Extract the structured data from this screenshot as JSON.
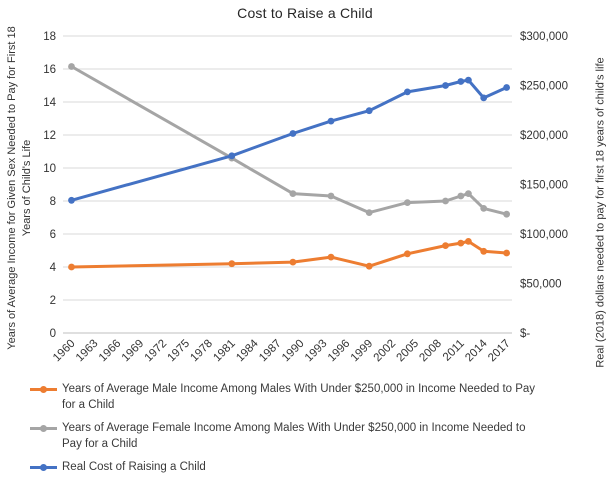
{
  "chart_data": {
    "type": "line",
    "title": "Cost to Raise a Child",
    "x": [
      1960,
      1981,
      1989,
      1994,
      1999,
      2004,
      2009,
      2011,
      2012,
      2014,
      2017
    ],
    "x_tick_labels": [
      "1960",
      "1963",
      "1966",
      "1969",
      "1972",
      "1975",
      "1978",
      "1981",
      "1984",
      "1987",
      "1990",
      "1993",
      "1996",
      "1999",
      "2002",
      "2005",
      "2008",
      "2011",
      "2014",
      "2017"
    ],
    "left_axis": {
      "label_line1": "Years of Average Income for Given Sex Needed to Pay for First 18",
      "label_line2": "Years of Child's Life",
      "min": 0,
      "max": 18,
      "tick_labels": [
        "0",
        "2",
        "4",
        "6",
        "8",
        "10",
        "12",
        "14",
        "16",
        "18"
      ]
    },
    "right_axis": {
      "label": "Real (2018) dollars needed to pay for first 18 years of child's life",
      "min": 0,
      "max": 300000,
      "tick_labels": [
        "$-",
        "$50,000",
        "$100,000",
        "$150,000",
        "$200,000",
        "$250,000",
        "$300,000"
      ]
    },
    "grid": "horizontal-only",
    "legend_position": "bottom-left",
    "series": [
      {
        "name": "Years of Average Male Income Among Males With Under $250,000 in Income Needed to Pay for a Child",
        "axis": "left",
        "color": "#ED7D31",
        "values": [
          4.0,
          4.2,
          4.3,
          4.6,
          4.05,
          4.8,
          5.3,
          5.45,
          5.55,
          4.95,
          4.85
        ]
      },
      {
        "name": "Years of Average Female Income Among Males With Under $250,000 in Income Needed to Pay for a Child",
        "axis": "left",
        "color": "#A5A5A5",
        "values": [
          16.15,
          10.6,
          8.45,
          8.3,
          7.3,
          7.9,
          8.0,
          8.3,
          8.45,
          7.55,
          7.2
        ]
      },
      {
        "name": "Real Cost of Raising a Child",
        "axis": "right",
        "color": "#4472C4",
        "values": [
          134000,
          179000,
          201500,
          214000,
          224500,
          243500,
          250000,
          254000,
          255500,
          237500,
          248000
        ]
      }
    ]
  }
}
